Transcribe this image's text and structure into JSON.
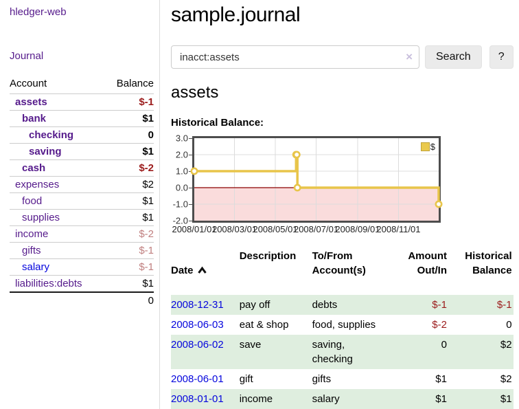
{
  "sidebar": {
    "app_title": "hledger-web",
    "journal_link": "Journal",
    "accounts_table": {
      "headers": {
        "account": "Account",
        "balance": "Balance"
      },
      "rows": [
        {
          "account": "assets",
          "balance": "$-1"
        },
        {
          "account": "bank",
          "balance": "$1"
        },
        {
          "account": "checking",
          "balance": "0"
        },
        {
          "account": "saving",
          "balance": "$1"
        },
        {
          "account": "cash",
          "balance": "$-2"
        },
        {
          "account": "expenses",
          "balance": "$2"
        },
        {
          "account": "food",
          "balance": "$1"
        },
        {
          "account": "supplies",
          "balance": "$1"
        },
        {
          "account": "income",
          "balance": "$-2"
        },
        {
          "account": "gifts",
          "balance": "$-1"
        },
        {
          "account": "salary",
          "balance": "$-1"
        },
        {
          "account": "liabilities:debts",
          "balance": "$1"
        }
      ],
      "total": "0"
    }
  },
  "header": {
    "title": "sample.journal"
  },
  "search": {
    "value": "inacct:assets",
    "clear_icon": "×",
    "search_button": "Search",
    "help_button": "?"
  },
  "account_page": {
    "title": "assets",
    "chart_label": "Historical Balance:"
  },
  "chart_data": {
    "type": "line",
    "step": true,
    "title": "Historical Balance:",
    "series": [
      {
        "name": "$",
        "color": "#e8c54a",
        "points": [
          [
            "2008/01/01",
            1
          ],
          [
            "2008/06/01",
            2
          ],
          [
            "2008/06/02",
            2
          ],
          [
            "2008/06/03",
            0
          ],
          [
            "2008/12/31",
            -1
          ]
        ]
      }
    ],
    "x_range": [
      "2008/01/01",
      "2008/12/31"
    ],
    "ylim": [
      -2,
      3
    ],
    "yticks": [
      3,
      2,
      1,
      0,
      -1,
      -2
    ],
    "xticks": [
      "2008/01/01",
      "2008/03/01",
      "2008/05/01",
      "2008/07/01",
      "2008/09/01",
      "2008/11/01"
    ],
    "grid": true,
    "legend_position": "top-right",
    "negative_fill": "#fadcdc",
    "zero_line_color": "#8b0000"
  },
  "register": {
    "headers": {
      "date": "Date",
      "description": "Description",
      "tofrom": "To/From\nAccount(s)",
      "amount": "Amount\nOut/In",
      "balance": "Historical\nBalance"
    },
    "rows": [
      {
        "date": "2008-12-31",
        "description": "pay off",
        "tofrom": "debts",
        "amount": "$-1",
        "balance": "$-1"
      },
      {
        "date": "2008-06-03",
        "description": "eat & shop",
        "tofrom": "food, supplies",
        "amount": "$-2",
        "balance": "0"
      },
      {
        "date": "2008-06-02",
        "description": "save",
        "tofrom": "saving,\nchecking",
        "amount": "0",
        "balance": "$2"
      },
      {
        "date": "2008-06-01",
        "description": "gift",
        "tofrom": "gifts",
        "amount": "$1",
        "balance": "$2"
      },
      {
        "date": "2008-01-01",
        "description": "income",
        "tofrom": "salary",
        "amount": "$1",
        "balance": "$1"
      }
    ]
  },
  "colors": {
    "link_purple": "#551a8b",
    "link_blue": "#0505dd",
    "negative_red": "#9b1b1b",
    "negative_light": "#c07f7f",
    "row_green": "#dfeedf",
    "chart_gold": "#e8c54a",
    "chart_negative_fill": "#fadcdc",
    "chart_zero_line": "#8b0000"
  }
}
